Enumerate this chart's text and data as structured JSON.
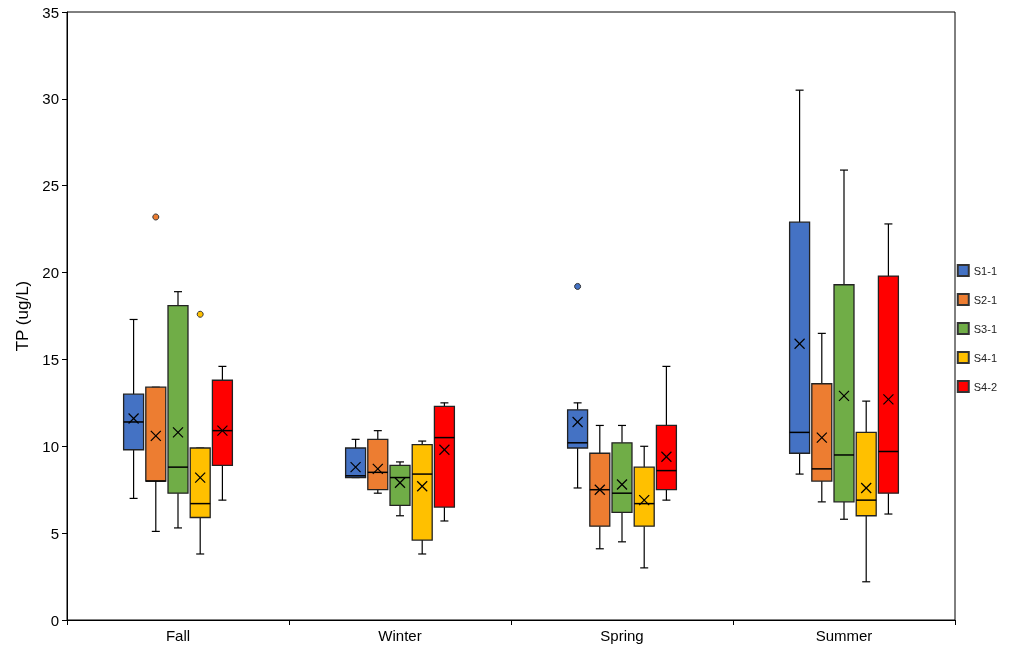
{
  "chart_data": {
    "type": "box",
    "ylabel": "TP (ug/L)",
    "categories": [
      "Fall",
      "Winter",
      "Spring",
      "Summer"
    ],
    "ylim": [
      0,
      35
    ],
    "yticks": [
      0,
      5,
      10,
      15,
      20,
      25,
      30,
      35
    ],
    "grid": false,
    "legend": "right",
    "series": [
      {
        "name": "S1-1",
        "color": "#4472c4",
        "boxes": [
          {
            "low": 7.0,
            "q1": 9.8,
            "median": 11.4,
            "q3": 13.0,
            "high": 17.3,
            "mean": 11.6
          },
          {
            "low": 8.2,
            "q1": 8.2,
            "median": 8.3,
            "q3": 9.9,
            "high": 10.4,
            "mean": 8.8
          },
          {
            "low": 7.6,
            "q1": 9.9,
            "median": 10.2,
            "q3": 12.1,
            "high": 12.5,
            "mean": 11.4,
            "outliers": [
              19.2
            ]
          },
          {
            "low": 8.4,
            "q1": 9.6,
            "median": 10.8,
            "q3": 22.9,
            "high": 30.5,
            "mean": 15.9
          }
        ]
      },
      {
        "name": "S2-1",
        "color": "#ed7d31",
        "boxes": [
          {
            "low": 5.1,
            "q1": 8.0,
            "median": 8.0,
            "q3": 13.4,
            "high": 13.4,
            "mean": 10.6,
            "outliers": [
              23.2
            ]
          },
          {
            "low": 7.3,
            "q1": 7.5,
            "median": 8.5,
            "q3": 10.4,
            "high": 10.9,
            "mean": 8.7
          },
          {
            "low": 4.1,
            "q1": 5.4,
            "median": 7.5,
            "q3": 9.6,
            "high": 11.2,
            "mean": 7.5
          },
          {
            "low": 6.8,
            "q1": 8.0,
            "median": 8.7,
            "q3": 13.6,
            "high": 16.5,
            "mean": 10.5
          }
        ]
      },
      {
        "name": "S3-1",
        "color": "#70ad47",
        "boxes": [
          {
            "low": 5.3,
            "q1": 7.3,
            "median": 8.8,
            "q3": 18.1,
            "high": 18.9,
            "mean": 10.8
          },
          {
            "low": 6.0,
            "q1": 6.6,
            "median": 8.2,
            "q3": 8.9,
            "high": 9.1,
            "mean": 7.9
          },
          {
            "low": 4.5,
            "q1": 6.2,
            "median": 7.3,
            "q3": 10.2,
            "high": 11.2,
            "mean": 7.8
          },
          {
            "low": 5.8,
            "q1": 6.8,
            "median": 9.5,
            "q3": 19.3,
            "high": 25.9,
            "mean": 12.9
          }
        ]
      },
      {
        "name": "S4-1",
        "color": "#ffc000",
        "boxes": [
          {
            "low": 3.8,
            "q1": 5.9,
            "median": 6.7,
            "q3": 9.9,
            "high": 9.9,
            "mean": 8.2,
            "outliers": [
              17.6
            ]
          },
          {
            "low": 3.8,
            "q1": 4.6,
            "median": 8.4,
            "q3": 10.1,
            "high": 10.3,
            "mean": 7.7
          },
          {
            "low": 3.0,
            "q1": 5.4,
            "median": 6.7,
            "q3": 8.8,
            "high": 10.0,
            "mean": 6.9
          },
          {
            "low": 2.2,
            "q1": 6.0,
            "median": 6.9,
            "q3": 10.8,
            "high": 12.6,
            "mean": 7.6
          }
        ]
      },
      {
        "name": "S4-2",
        "color": "#ff0000",
        "boxes": [
          {
            "low": 6.9,
            "q1": 8.9,
            "median": 10.9,
            "q3": 13.8,
            "high": 14.6,
            "mean": 10.9
          },
          {
            "low": 5.7,
            "q1": 6.5,
            "median": 10.5,
            "q3": 12.3,
            "high": 12.5,
            "mean": 9.8
          },
          {
            "low": 6.9,
            "q1": 7.5,
            "median": 8.6,
            "q3": 11.2,
            "high": 14.6,
            "mean": 9.4
          },
          {
            "low": 6.1,
            "q1": 7.3,
            "median": 9.7,
            "q3": 19.8,
            "high": 22.8,
            "mean": 12.7
          }
        ]
      }
    ]
  }
}
